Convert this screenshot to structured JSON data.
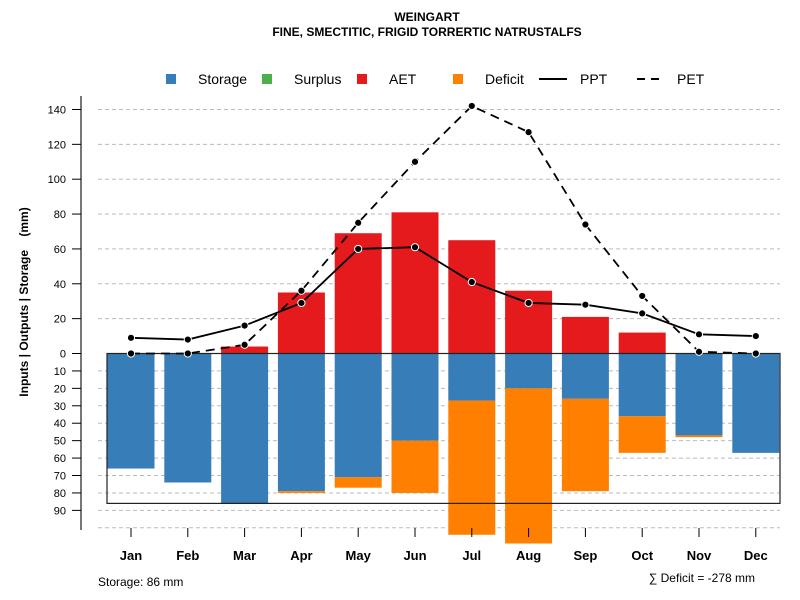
{
  "chart_data": {
    "type": "bar",
    "title": "WEINGART",
    "subtitle": "FINE, SMECTITIC, FRIGID TORRERTIC NATRUSTALFS",
    "ylabel": "Inputs | Outputs | Storage    (mm)",
    "categories": [
      "Jan",
      "Feb",
      "Mar",
      "Apr",
      "May",
      "Jun",
      "Jul",
      "Aug",
      "Sep",
      "Oct",
      "Nov",
      "Dec"
    ],
    "upper_ticks": [
      0,
      20,
      40,
      60,
      80,
      100,
      120,
      140
    ],
    "lower_ticks": [
      10,
      20,
      30,
      40,
      50,
      60,
      70,
      80,
      90
    ],
    "ylim": [
      -110,
      145
    ],
    "storage_capacity": 86,
    "series": [
      {
        "name": "Storage",
        "type": "bar",
        "color": "#377EB8",
        "values": [
          66,
          74,
          86,
          79,
          71,
          50,
          27,
          20,
          26,
          36,
          47,
          57
        ]
      },
      {
        "name": "Surplus",
        "type": "bar",
        "color": "#4DAF4A",
        "values": [
          0,
          0,
          0,
          0,
          0,
          0,
          0,
          0,
          0,
          0,
          0,
          0
        ]
      },
      {
        "name": "AET",
        "type": "bar",
        "color": "#E41A1C",
        "values": [
          0,
          0,
          4,
          35,
          69,
          81,
          65,
          36,
          21,
          12,
          0,
          0
        ]
      },
      {
        "name": "Deficit",
        "type": "bar",
        "color": "#FF7F00",
        "values": [
          0,
          0,
          0,
          1,
          6,
          30,
          77,
          89,
          53,
          21,
          1,
          0
        ]
      },
      {
        "name": "PPT",
        "type": "line",
        "style": "solid",
        "values": [
          9,
          8,
          16,
          29,
          60,
          61,
          41,
          29,
          28,
          23,
          11,
          10
        ]
      },
      {
        "name": "PET",
        "type": "line",
        "style": "dashed",
        "values": [
          0,
          0,
          5,
          36,
          75,
          110,
          142,
          127,
          74,
          33,
          1,
          0
        ]
      }
    ],
    "legend_position": "top",
    "grid": true,
    "footer_left": "Storage: 86 mm",
    "footer_right": "∑ Deficit = -278 mm"
  }
}
